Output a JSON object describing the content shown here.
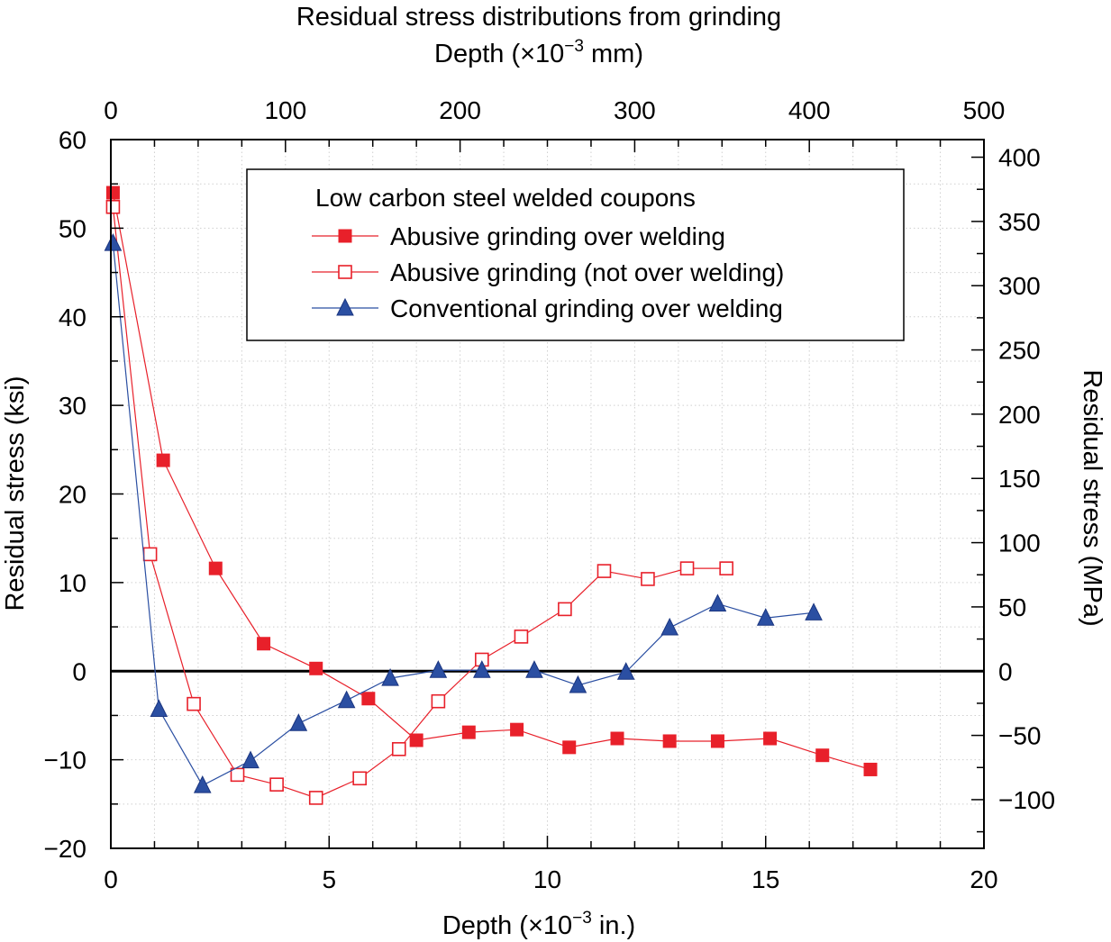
{
  "chart_data": {
    "type": "line",
    "title": "Residual stress distributions from grinding",
    "top_axis": {
      "label": "Depth (×10",
      "label_exp": "−3",
      "label_suffix": " mm)",
      "min": 0,
      "max": 500,
      "ticks": [
        "0",
        "100",
        "200",
        "300",
        "400",
        "500"
      ]
    },
    "xlabel": "Depth (×10",
    "xlabel_exp": "−3",
    "xlabel_suffix": " in.)",
    "xlim": [
      0,
      20
    ],
    "x_ticks": [
      "0",
      "5",
      "10",
      "15",
      "20"
    ],
    "ylabel": "Residual stress (ksi)",
    "ylim": [
      -20,
      60
    ],
    "y_ticks": [
      "−20",
      "−10",
      "0",
      "10",
      "20",
      "30",
      "40",
      "50",
      "60"
    ],
    "right_axis": {
      "label": "Residual stress (MPa)",
      "min": -137.9,
      "max": 413.7,
      "ticks": [
        "−100",
        "−50",
        "0",
        "50",
        "100",
        "150",
        "200",
        "250",
        "300",
        "350",
        "400"
      ]
    },
    "legend": {
      "title": "Low carbon steel welded coupons",
      "position": "top-center"
    },
    "series": [
      {
        "name": "Abusive grinding over welding",
        "marker": "filled-square",
        "color": "#e8202a",
        "x": [
          0.05,
          1.2,
          2.4,
          3.5,
          4.7,
          5.9,
          7.0,
          8.2,
          9.3,
          10.5,
          11.6,
          12.8,
          13.9,
          15.1,
          16.3,
          17.4
        ],
        "y": [
          54.0,
          23.8,
          11.6,
          3.1,
          0.3,
          -3.1,
          -7.8,
          -6.9,
          -6.6,
          -8.6,
          -7.6,
          -7.9,
          -7.9,
          -7.6,
          -9.5,
          -11.1
        ]
      },
      {
        "name": "Abusive grinding (not over welding)",
        "marker": "open-square",
        "color": "#e8202a",
        "x": [
          0.05,
          0.9,
          1.9,
          2.9,
          3.8,
          4.7,
          5.7,
          6.6,
          7.5,
          8.5,
          9.4,
          10.4,
          11.3,
          12.3,
          13.2,
          14.1
        ],
        "y": [
          52.4,
          13.2,
          -3.7,
          -11.7,
          -12.8,
          -14.3,
          -12.1,
          -8.8,
          -3.4,
          1.3,
          3.9,
          7.0,
          11.3,
          10.4,
          11.6,
          11.6
        ]
      },
      {
        "name": "Conventional grinding over welding",
        "marker": "filled-triangle",
        "color": "#2b4fa2",
        "x": [
          0.05,
          1.1,
          2.1,
          3.2,
          4.3,
          5.4,
          6.4,
          7.5,
          8.5,
          9.7,
          10.7,
          11.8,
          12.8,
          13.9,
          15.0,
          16.1
        ],
        "y": [
          48.3,
          -4.3,
          -12.9,
          -10.1,
          -5.9,
          -3.3,
          -0.8,
          0.1,
          0.1,
          0.1,
          -1.6,
          -0.1,
          4.9,
          7.6,
          6.0,
          6.6
        ]
      }
    ]
  }
}
